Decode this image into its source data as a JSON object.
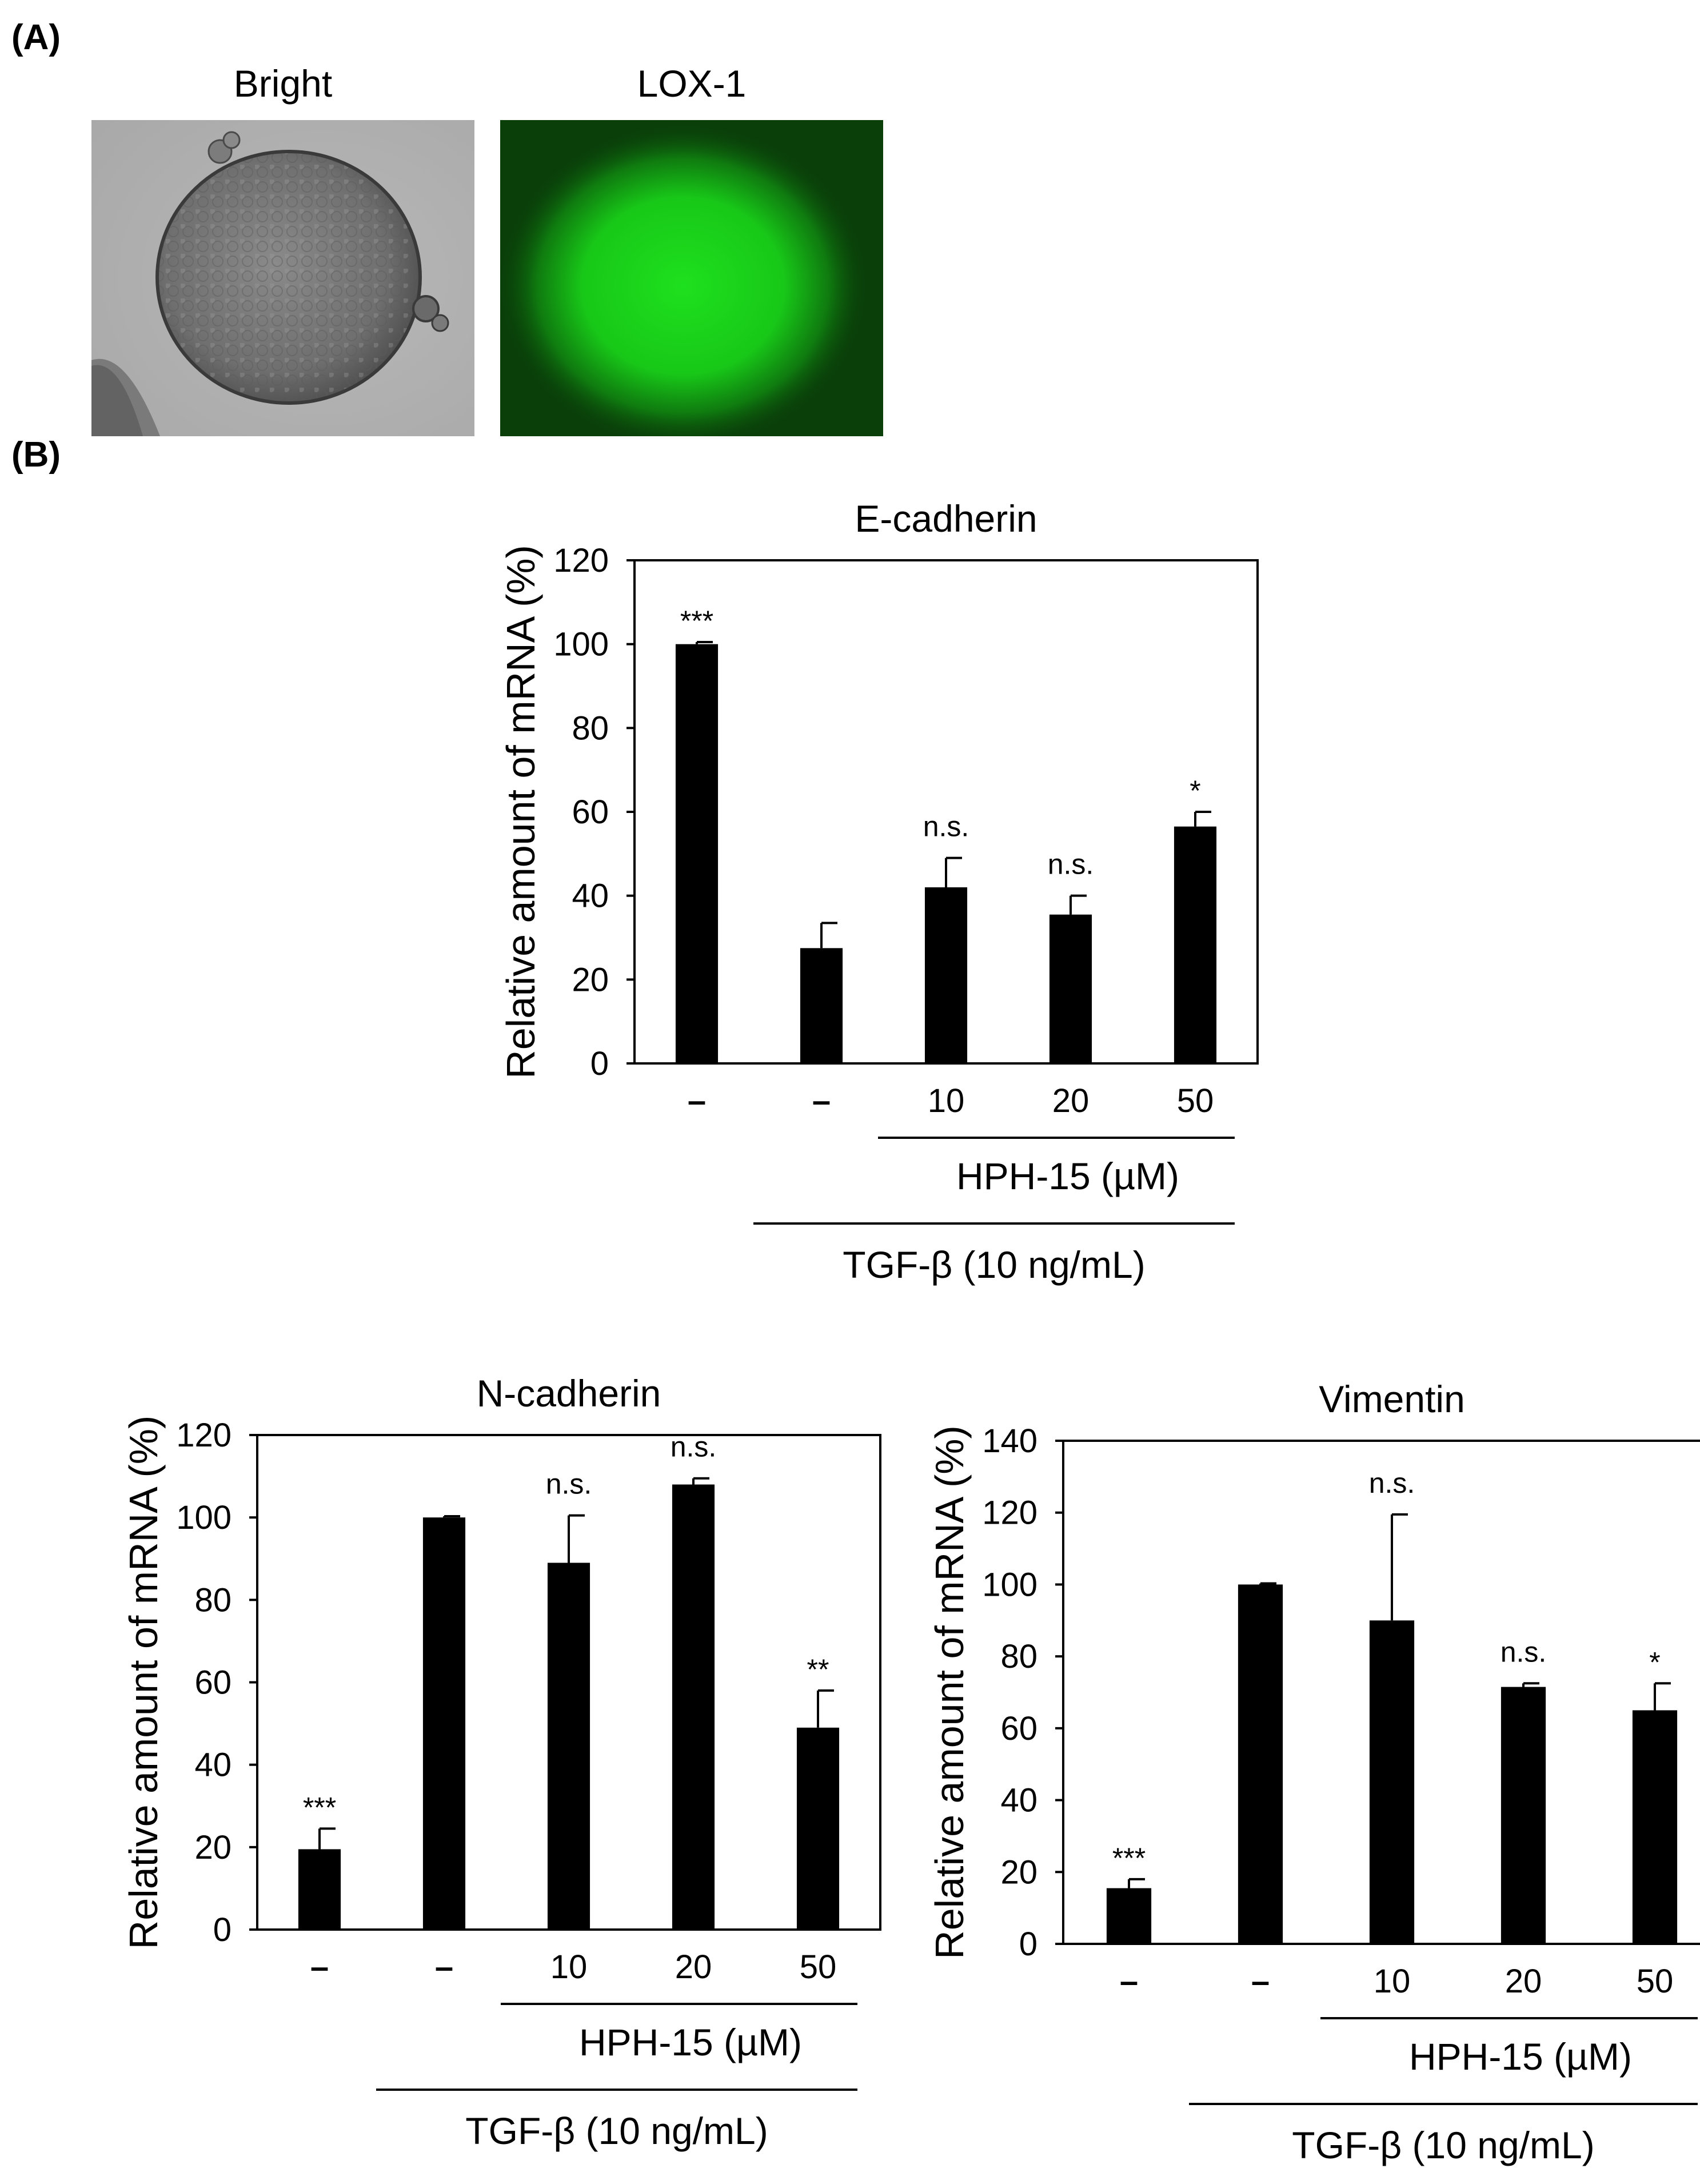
{
  "panel_a": {
    "label": "(A)",
    "images": [
      {
        "title": "Bright",
        "kind": "brightfield-micrograph"
      },
      {
        "title": "LOX-1",
        "kind": "fluorescence-micrograph",
        "color": "#1ee01e"
      }
    ]
  },
  "panel_b": {
    "label": "(B)"
  },
  "bar_color": "#000000",
  "chart_data": [
    {
      "type": "bar",
      "title": "E-cadherin",
      "ylabel": "Relative amount of mRNA (%)",
      "xlabel": "",
      "ylim": [
        0,
        120
      ],
      "yticks": [
        "0",
        "20",
        "40",
        "60",
        "80",
        "100",
        "120"
      ],
      "categories": [
        "–",
        "–",
        "10",
        "20",
        "50"
      ],
      "values": [
        100,
        27.5,
        42,
        35.5,
        56.5
      ],
      "errors": [
        0.5,
        6,
        7,
        4.5,
        3.5
      ],
      "annotations": [
        "***",
        "",
        "n.s.",
        "n.s.",
        "*"
      ],
      "group_labels": [
        "HPH-15 (µM)",
        "TGF-β (10 ng/mL)"
      ]
    },
    {
      "type": "bar",
      "title": "N-cadherin",
      "ylabel": "Relative amount of mRNA (%)",
      "xlabel": "",
      "ylim": [
        0,
        120
      ],
      "yticks": [
        "0",
        "20",
        "40",
        "60",
        "80",
        "100",
        "120"
      ],
      "categories": [
        "–",
        "–",
        "10",
        "20",
        "50"
      ],
      "values": [
        19.5,
        100,
        89,
        108,
        49
      ],
      "errors": [
        5,
        0.3,
        11.5,
        1.5,
        9
      ],
      "annotations": [
        "***",
        "",
        "n.s.",
        "n.s.",
        "**"
      ],
      "group_labels": [
        "HPH-15 (µM)",
        "TGF-β (10 ng/mL)"
      ]
    },
    {
      "type": "bar",
      "title": "Vimentin",
      "ylabel": "Relative amount of mRNA (%)",
      "xlabel": "",
      "ylim": [
        0,
        140
      ],
      "yticks": [
        "0",
        "20",
        "40",
        "60",
        "80",
        "100",
        "120",
        "140"
      ],
      "categories": [
        "–",
        "–",
        "10",
        "20",
        "50"
      ],
      "values": [
        15.5,
        100,
        90,
        71.5,
        65
      ],
      "errors": [
        2.5,
        0.3,
        29.5,
        1,
        7.5
      ],
      "annotations": [
        "***",
        "",
        "n.s.",
        "n.s.",
        "*"
      ],
      "group_labels": [
        "HPH-15 (µM)",
        "TGF-β (10 ng/mL)"
      ]
    }
  ]
}
